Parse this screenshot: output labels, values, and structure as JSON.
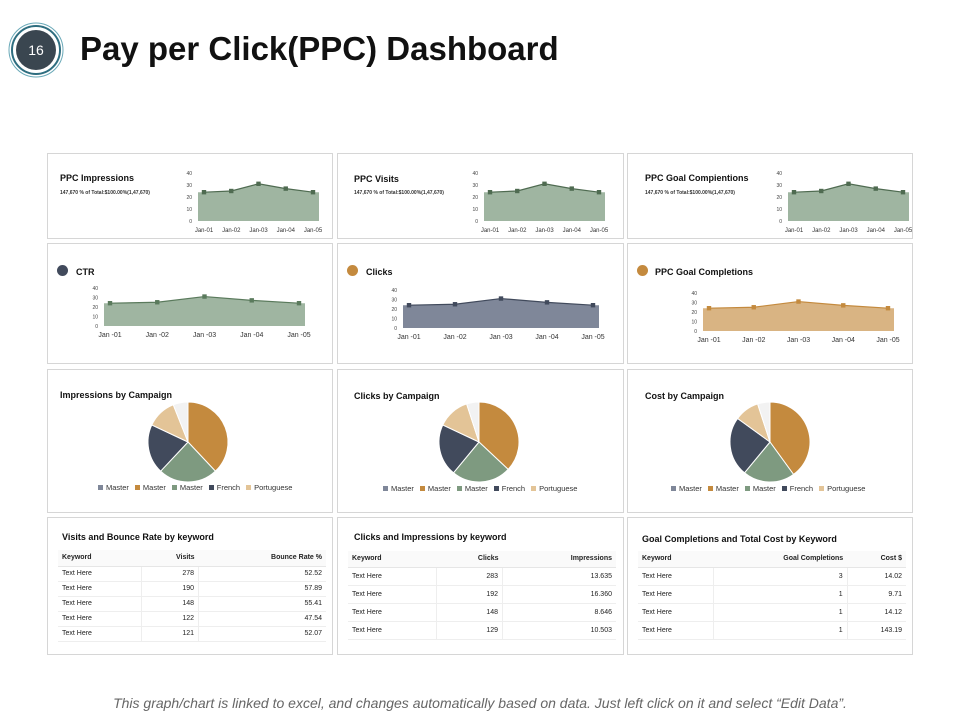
{
  "slide": {
    "number": "16",
    "title": "Pay per Click(PPC) Dashboard",
    "footer": "This graph/chart is linked to excel, and changes automatically based on data. Just left click on it and select “Edit Data”."
  },
  "colors": {
    "green": "#7e9a80",
    "green_line": "#4f6b51",
    "navy": "#414a5c",
    "slate": "#7f8799",
    "tan": "#c48a3e",
    "tan_light": "#d9b483",
    "sand": "#e3c497",
    "panel_border": "#d6d6d6"
  },
  "top_row": [
    {
      "title": "PPC Impressions",
      "subtitle": "147,670 % of Total:$100.00%(1,47,670)"
    },
    {
      "title": "PPC Visits",
      "subtitle": "147,670 % of Total:$100.00%(1,47,670)"
    },
    {
      "title": "PPC Goal Compientions",
      "subtitle": "147,670 % of Total:$100.00%(1,47,670)"
    }
  ],
  "middle_row": [
    {
      "title": "CTR"
    },
    {
      "title": "Clicks"
    },
    {
      "title": "PPC Goal Completions"
    }
  ],
  "pie_row": [
    {
      "title": "Impressions by Campaign"
    },
    {
      "title": "Clicks by Campaign"
    },
    {
      "title": "Cost by Campaign"
    }
  ],
  "tables": [
    {
      "title": "Visits and Bounce Rate by keyword",
      "headers": [
        "Keyword",
        "Visits",
        "Bounce Rate %"
      ],
      "rows": [
        [
          "Text Here",
          "278",
          "52.52"
        ],
        [
          "Text Here",
          "190",
          "57.89"
        ],
        [
          "Text Here",
          "148",
          "55.41"
        ],
        [
          "Text Here",
          "122",
          "47.54"
        ],
        [
          "Text Here",
          "121",
          "52.07"
        ]
      ]
    },
    {
      "title": "Clicks and Impressions by keyword",
      "headers": [
        "Keyword",
        "Clicks",
        "Impressions"
      ],
      "rows": [
        [
          "Text Here",
          "283",
          "13.635"
        ],
        [
          "Text Here",
          "192",
          "16.360"
        ],
        [
          "Text Here",
          "148",
          "8.646"
        ],
        [
          "Text Here",
          "129",
          "10.503"
        ]
      ]
    },
    {
      "title": "Goal Completions and Total Cost by Keyword",
      "headers": [
        "Keyword",
        "Goal Completions",
        "Cost $"
      ],
      "rows": [
        [
          "Text Here",
          "3",
          "14.02"
        ],
        [
          "Text Here",
          "1",
          "9.71"
        ],
        [
          "Text Here",
          "1",
          "14.12"
        ],
        [
          "Text Here",
          "1",
          "143.19"
        ]
      ]
    }
  ],
  "chart_data": [
    {
      "type": "area",
      "categories": [
        "Jan-01",
        "Jan-02",
        "Jan-03",
        "Jan-04",
        "Jan-05"
      ],
      "values": [
        24,
        25,
        31,
        27,
        24
      ],
      "yticks": [
        0,
        10,
        20,
        30,
        40
      ],
      "ylim": [
        0,
        40
      ]
    },
    {
      "type": "area",
      "categories": [
        "Jan-01",
        "Jan-02",
        "Jan-03",
        "Jan-04",
        "Jan-05"
      ],
      "values": [
        24,
        25,
        31,
        27,
        24
      ],
      "yticks": [
        0,
        10,
        20,
        30,
        40
      ],
      "ylim": [
        0,
        40
      ]
    },
    {
      "type": "area",
      "categories": [
        "Jan-01",
        "Jan-02",
        "Jan-03",
        "Jan-04",
        "Jan-05"
      ],
      "values": [
        24,
        25,
        31,
        27,
        24
      ],
      "yticks": [
        0,
        10,
        20,
        30,
        40
      ],
      "ylim": [
        0,
        40
      ]
    },
    {
      "type": "area",
      "categories": [
        "Jan -01",
        "Jan -02",
        "Jan -03",
        "Jan -04",
        "Jan -05"
      ],
      "values": [
        24,
        25,
        31,
        27,
        24
      ],
      "yticks": [
        0,
        10,
        20,
        30,
        40
      ],
      "ylim": [
        0,
        40
      ]
    },
    {
      "type": "area",
      "categories": [
        "Jan -01",
        "Jan -02",
        "Jan -03",
        "Jan -04",
        "Jan -05"
      ],
      "values": [
        24,
        25,
        31,
        27,
        24
      ],
      "yticks": [
        0,
        10,
        20,
        30,
        40
      ],
      "ylim": [
        0,
        40
      ]
    },
    {
      "type": "area",
      "categories": [
        "Jan -01",
        "Jan -02",
        "Jan -03",
        "Jan -04",
        "Jan -05"
      ],
      "values": [
        24,
        25,
        31,
        27,
        24
      ],
      "yticks": [
        0,
        10,
        20,
        30,
        40
      ],
      "ylim": [
        0,
        40
      ]
    },
    {
      "type": "pie",
      "labels": [
        "Master",
        "Master",
        "Master",
        "French",
        "Portuguese"
      ],
      "values": [
        38,
        24,
        20,
        12,
        6
      ]
    },
    {
      "type": "pie",
      "labels": [
        "Master",
        "Master",
        "Master",
        "French",
        "Portuguese"
      ],
      "values": [
        37,
        24,
        21,
        13,
        5
      ]
    },
    {
      "type": "pie",
      "labels": [
        "Master",
        "Master",
        "Master",
        "French",
        "Portuguese"
      ],
      "values": [
        40,
        21,
        24,
        10,
        5
      ]
    }
  ]
}
